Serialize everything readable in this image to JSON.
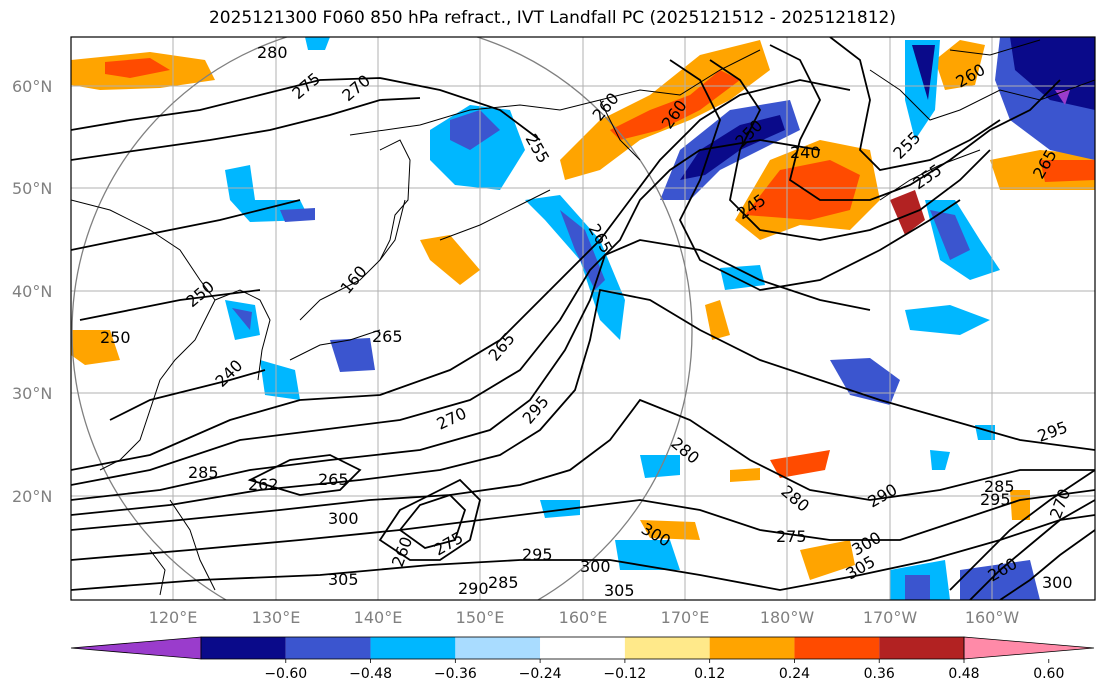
{
  "title": "2025121300 F060 850 hPa refract., IVT Landfall PC (2025121512 - 2025121812)",
  "lat_labels": [
    "20°N",
    "30°N",
    "40°N",
    "50°N",
    "60°N"
  ],
  "lon_labels": [
    "120°E",
    "130°E",
    "140°E",
    "150°E",
    "160°E",
    "170°E",
    "180°W",
    "170°W",
    "160°W"
  ],
  "contour_labels": [
    "280",
    "275",
    "270",
    "255",
    "260",
    "260",
    "250",
    "240",
    "260",
    "265",
    "245",
    "255",
    "255",
    "265",
    "265",
    "160",
    "250",
    "250",
    "265",
    "240",
    "270",
    "295",
    "280",
    "275",
    "290",
    "285",
    "262",
    "265",
    "300",
    "295",
    "275",
    "280",
    "305",
    "300",
    "305",
    "290",
    "285",
    "260",
    "295",
    "300",
    "305",
    "300",
    "260",
    "295",
    "285",
    "270",
    "300"
  ],
  "colorbar": {
    "ticks": [
      "−0.60",
      "−0.48",
      "−0.36",
      "−0.24",
      "−0.12",
      "0.12",
      "0.24",
      "0.36",
      "0.48",
      "0.60"
    ],
    "colors": [
      "#9a3ccc",
      "#0a0a8a",
      "#3b55cf",
      "#00b7ff",
      "#a9dcff",
      "#ffffff",
      "#ffe98a",
      "#ffa400",
      "#ff4b00",
      "#b22222",
      "#ff8aa8"
    ]
  }
}
